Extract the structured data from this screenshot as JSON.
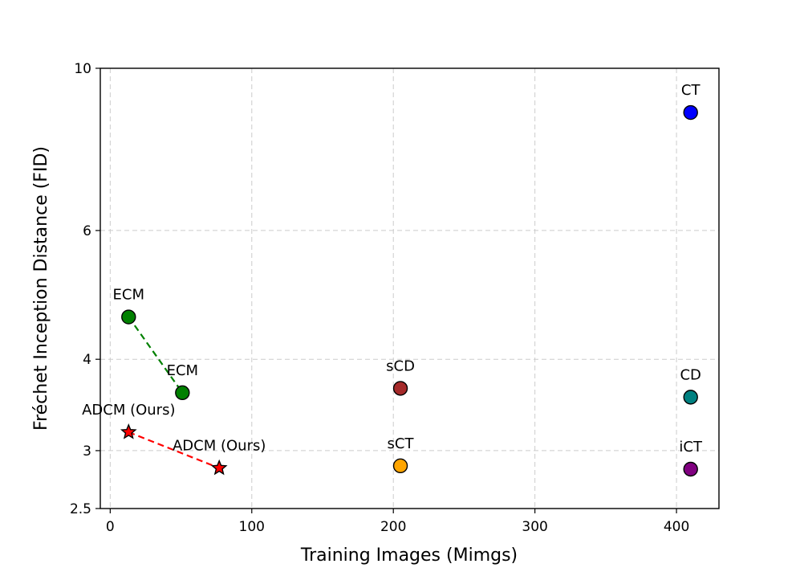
{
  "chart_data": {
    "type": "scatter",
    "title": "",
    "xlabel": "Training Images (Mimgs)",
    "ylabel": "Fréchet Inception Distance (FID)",
    "xlim": [
      -7,
      430
    ],
    "ylim": [
      2.5,
      10
    ],
    "yscale": "log",
    "grid": true,
    "xticks": [
      0,
      100,
      200,
      300,
      400
    ],
    "xtick_labels": [
      "0",
      "100",
      "200",
      "300",
      "400"
    ],
    "yticks": [
      2.5,
      3,
      4,
      6,
      10
    ],
    "ytick_labels": [
      "2.5",
      "3",
      "4",
      "6",
      "10"
    ],
    "points": [
      {
        "label": "CT",
        "x": 410,
        "y": 8.7,
        "marker": "circle",
        "color": "#0000ff"
      },
      {
        "label": "ECM",
        "x": 13,
        "y": 4.57,
        "marker": "circle",
        "color": "#008000"
      },
      {
        "label": "ECM",
        "x": 51,
        "y": 3.6,
        "marker": "circle",
        "color": "#008000"
      },
      {
        "label": "sCD",
        "x": 205,
        "y": 3.65,
        "marker": "circle",
        "color": "#a52a2a"
      },
      {
        "label": "CD",
        "x": 410,
        "y": 3.55,
        "marker": "circle",
        "color": "#008080"
      },
      {
        "label": "ADCM (Ours)",
        "x": 13,
        "y": 3.18,
        "marker": "star",
        "color": "#ff0000"
      },
      {
        "label": "ADCM (Ours)",
        "x": 77,
        "y": 2.84,
        "marker": "star",
        "color": "#ff0000"
      },
      {
        "label": "sCT",
        "x": 205,
        "y": 2.86,
        "marker": "circle",
        "color": "#ffa500"
      },
      {
        "label": "iCT",
        "x": 410,
        "y": 2.83,
        "marker": "circle",
        "color": "#800080"
      }
    ],
    "connectors": [
      {
        "from": 1,
        "to": 2,
        "color": "#008000",
        "style": "dashed"
      },
      {
        "from": 5,
        "to": 6,
        "color": "#ff0000",
        "style": "dashed"
      }
    ]
  }
}
